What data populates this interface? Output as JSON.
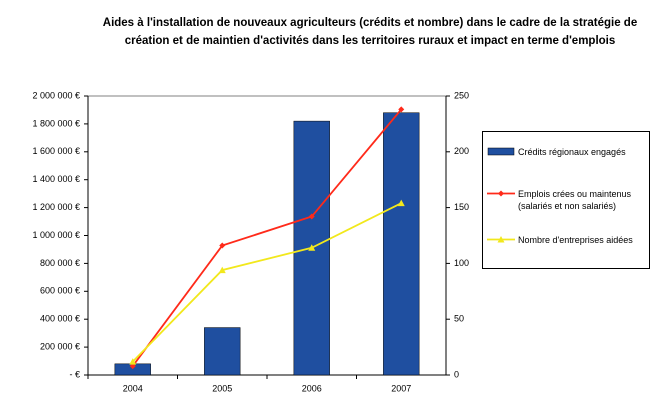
{
  "chart_data": {
    "type": "bar",
    "title": "Aides à l'installation de nouveaux agriculteurs (crédits et nombre) dans le cadre de la stratégie de création et de maintien d'activités dans les territoires ruraux et impact en terme d'emplois",
    "categories": [
      "2004",
      "2005",
      "2006",
      "2007"
    ],
    "series": [
      {
        "name": "Crédits régionaux engagés",
        "type": "bar",
        "color": "#1f4fa0",
        "values": [
          80000,
          340000,
          1820000,
          1880000
        ]
      },
      {
        "name": "Emplois crées ou maintenus (salariés et non salariés)",
        "type": "line",
        "axis": "y2",
        "marker": "diamond",
        "color": "#ff2a1a",
        "values": [
          8,
          116,
          142,
          238
        ]
      },
      {
        "name": "Nombre d'entreprises aidées",
        "type": "line",
        "axis": "y2",
        "marker": "triangle",
        "color": "#f2e81c",
        "values": [
          12,
          94,
          114,
          154
        ]
      }
    ],
    "ylim": [
      0,
      2000000
    ],
    "yticks": [
      {
        "value": 0,
        "label": "-   €"
      },
      {
        "value": 200000,
        "label": "200 000 €"
      },
      {
        "value": 400000,
        "label": "400 000 €"
      },
      {
        "value": 600000,
        "label": "600 000 €"
      },
      {
        "value": 800000,
        "label": "800 000 €"
      },
      {
        "value": 1000000,
        "label": "1 000 000 €"
      },
      {
        "value": 1200000,
        "label": "1 200 000 €"
      },
      {
        "value": 1400000,
        "label": "1 400 000 €"
      },
      {
        "value": 1600000,
        "label": "1 600 000 €"
      },
      {
        "value": 1800000,
        "label": "1 800 000 €"
      },
      {
        "value": 2000000,
        "label": "2 000 000 €"
      }
    ],
    "y2lim": [
      0,
      250
    ],
    "y2ticks": [
      0,
      50,
      100,
      150,
      200,
      250
    ],
    "legend": "right"
  }
}
